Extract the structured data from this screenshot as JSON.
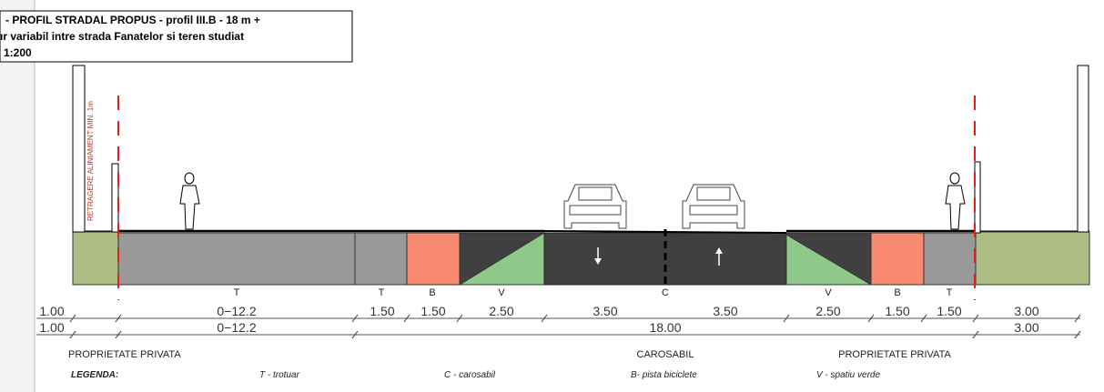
{
  "title": {
    "lines": [
      "- PROFIL STRADAL PROPUS - profil III.B - 18 m +",
      "ır variabil intre strada Fanatelor si teren studiat"
    ],
    "scale": " 1:200"
  },
  "setback_note": "RETRAGERE ALINIAMENT MIN. 1m",
  "zones": [
    "T",
    "T",
    "B",
    "V",
    "C",
    "V",
    "B",
    "T"
  ],
  "dimensions": {
    "row1": [
      "1.00",
      "0−12.2",
      "1.50",
      "1.50",
      "2.50",
      "3.50",
      "3.50",
      "2.50",
      "1.50",
      "1.50",
      "3.00"
    ],
    "row2": [
      "1.00",
      "0−12.2",
      "18.00",
      "3.00"
    ]
  },
  "sections": [
    "PROPRIETATE PRIVATA",
    "CAROSABIL",
    "PROPRIETATE PRIVATA"
  ],
  "legend": {
    "heading": "LEGENDA:",
    "items": [
      "T - trotuar",
      "C - carosabil",
      "B- pista biciclete",
      "V - spatiu verde"
    ]
  }
}
